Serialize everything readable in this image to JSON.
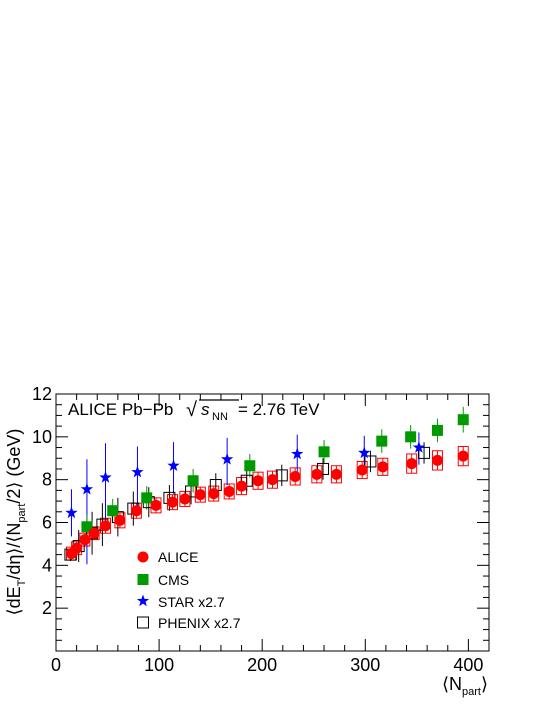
{
  "chart_data": {
    "type": "scatter",
    "title": "ALICE Pb−Pb",
    "energy_label": "= 2.76 TeV",
    "sqrt_symbol": "√",
    "sqrt_var": "s",
    "sqrt_sub": "NN",
    "ylabel": {
      "open": "⟨dE",
      "sub1": "T",
      "mid": "/dη⟩/⟨N",
      "sub2": "part",
      "close": "/2⟩ (GeV)"
    },
    "xlabel": {
      "open": "⟨N",
      "sub": "part",
      "close": "⟩"
    },
    "xlim": [
      0,
      420
    ],
    "ylim": [
      0,
      12
    ],
    "x_ticks": [
      0,
      100,
      200,
      300,
      400
    ],
    "y_ticks": [
      2,
      4,
      6,
      8,
      10,
      12
    ],
    "x_tick_labels": [
      "0",
      "100",
      "200",
      "300",
      "400"
    ],
    "y_tick_labels": [
      "2",
      "4",
      "6",
      "8",
      "10",
      "12"
    ],
    "legend_position": "lower-left",
    "grid": false,
    "series": [
      {
        "name": "ALICE",
        "marker": "circle",
        "color": "#ff0000",
        "sys_color": "#ff0000",
        "points": [
          {
            "x": 15,
            "y": 4.55,
            "err": 0.3,
            "sys": 0.3
          },
          {
            "x": 20,
            "y": 4.8,
            "err": 0.3,
            "sys": 0.3
          },
          {
            "x": 28,
            "y": 5.2,
            "err": 0.3,
            "sys": 0.3
          },
          {
            "x": 37,
            "y": 5.5,
            "err": 0.3,
            "sys": 0.3
          },
          {
            "x": 48,
            "y": 5.85,
            "err": 0.35,
            "sys": 0.35
          },
          {
            "x": 62,
            "y": 6.1,
            "err": 0.35,
            "sys": 0.35
          },
          {
            "x": 78,
            "y": 6.55,
            "err": 0.35,
            "sys": 0.35
          },
          {
            "x": 97,
            "y": 6.8,
            "err": 0.35,
            "sys": 0.35
          },
          {
            "x": 113,
            "y": 6.95,
            "err": 0.35,
            "sys": 0.35
          },
          {
            "x": 125,
            "y": 7.1,
            "err": 0.35,
            "sys": 0.35
          },
          {
            "x": 140,
            "y": 7.3,
            "err": 0.35,
            "sys": 0.35
          },
          {
            "x": 153,
            "y": 7.35,
            "err": 0.35,
            "sys": 0.35
          },
          {
            "x": 168,
            "y": 7.45,
            "err": 0.35,
            "sys": 0.35
          },
          {
            "x": 180,
            "y": 7.7,
            "err": 0.4,
            "sys": 0.4
          },
          {
            "x": 196,
            "y": 7.95,
            "err": 0.4,
            "sys": 0.4
          },
          {
            "x": 210,
            "y": 8.0,
            "err": 0.4,
            "sys": 0.4
          },
          {
            "x": 232,
            "y": 8.15,
            "err": 0.4,
            "sys": 0.4
          },
          {
            "x": 253,
            "y": 8.25,
            "err": 0.4,
            "sys": 0.4
          },
          {
            "x": 272,
            "y": 8.25,
            "err": 0.4,
            "sys": 0.4
          },
          {
            "x": 297,
            "y": 8.45,
            "err": 0.4,
            "sys": 0.4
          },
          {
            "x": 317,
            "y": 8.6,
            "err": 0.4,
            "sys": 0.4
          },
          {
            "x": 345,
            "y": 8.75,
            "err": 0.45,
            "sys": 0.45
          },
          {
            "x": 370,
            "y": 8.9,
            "err": 0.45,
            "sys": 0.45
          },
          {
            "x": 395,
            "y": 9.1,
            "err": 0.45,
            "sys": 0.45
          }
        ]
      },
      {
        "name": "CMS",
        "marker": "square-filled",
        "color": "#009900",
        "points": [
          {
            "x": 30,
            "y": 5.8,
            "err": 0.55
          },
          {
            "x": 55,
            "y": 6.55,
            "err": 0.55
          },
          {
            "x": 88,
            "y": 7.15,
            "err": 0.55
          },
          {
            "x": 133,
            "y": 7.95,
            "err": 0.55
          },
          {
            "x": 188,
            "y": 8.65,
            "err": 0.55
          },
          {
            "x": 260,
            "y": 9.3,
            "err": 0.55
          },
          {
            "x": 316,
            "y": 9.8,
            "err": 0.55
          },
          {
            "x": 344,
            "y": 10.0,
            "err": 0.55
          },
          {
            "x": 370,
            "y": 10.3,
            "err": 0.55
          },
          {
            "x": 395,
            "y": 10.8,
            "err": 0.6
          }
        ]
      },
      {
        "name": "STAR x2.7",
        "marker": "star",
        "color": "#0000ff",
        "points": [
          {
            "x": 15,
            "y": 6.45,
            "err_low": 1.1,
            "err_high": 1.1
          },
          {
            "x": 30,
            "y": 7.55,
            "err_low": 3.5,
            "err_high": 1.4
          },
          {
            "x": 48,
            "y": 8.1,
            "err_low": 2.4,
            "err_high": 1.6
          },
          {
            "x": 79,
            "y": 8.35,
            "err_low": 1.7,
            "err_high": 1.2
          },
          {
            "x": 114,
            "y": 8.65,
            "err_low": 1.3,
            "err_high": 1.1
          },
          {
            "x": 166,
            "y": 8.95,
            "err_low": 1.2,
            "err_high": 1.0
          },
          {
            "x": 234,
            "y": 9.2,
            "err_low": 1.1,
            "err_high": 0.9
          },
          {
            "x": 299,
            "y": 9.25,
            "err_low": 0.9,
            "err_high": 0.8
          },
          {
            "x": 352,
            "y": 9.5,
            "err_low": 0.8,
            "err_high": 0.7
          }
        ]
      },
      {
        "name": "PHENIX x2.7",
        "marker": "square-open",
        "color": "#000000",
        "points": [
          {
            "x": 14,
            "y": 4.5,
            "err": 0.3
          },
          {
            "x": 22,
            "y": 4.9,
            "err": 0.75
          },
          {
            "x": 35,
            "y": 5.5,
            "err": 1.0
          },
          {
            "x": 45,
            "y": 5.9,
            "err": 1.0
          },
          {
            "x": 60,
            "y": 6.25,
            "err": 0.9
          },
          {
            "x": 75,
            "y": 6.65,
            "err": 0.8
          },
          {
            "x": 90,
            "y": 6.95,
            "err": 0.7
          },
          {
            "x": 110,
            "y": 7.15,
            "err": 0.6
          },
          {
            "x": 131,
            "y": 7.45,
            "err": 0.6
          },
          {
            "x": 155,
            "y": 7.75,
            "err": 0.55
          },
          {
            "x": 185,
            "y": 7.95,
            "err": 0.5
          },
          {
            "x": 219,
            "y": 8.2,
            "err": 0.5
          },
          {
            "x": 259,
            "y": 8.5,
            "err": 0.5
          },
          {
            "x": 305,
            "y": 8.85,
            "err": 0.5
          },
          {
            "x": 357,
            "y": 9.25,
            "err": 0.5
          }
        ]
      }
    ]
  }
}
